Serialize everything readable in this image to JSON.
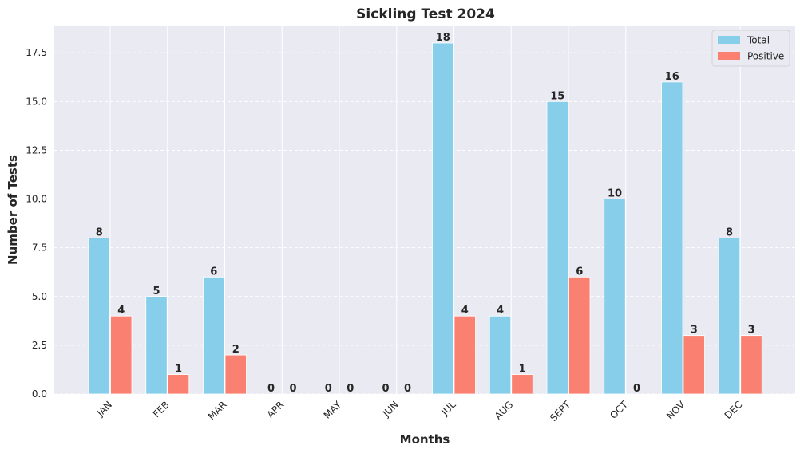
{
  "chart_data": {
    "type": "bar",
    "title": "Sickling Test 2024",
    "xlabel": "Months",
    "ylabel": "Number of Tests",
    "categories": [
      "JAN",
      "FEB",
      "MAR",
      "APR",
      "MAY",
      "JUN",
      "JUL",
      "AUG",
      "SEPT",
      "OCT",
      "NOV",
      "DEC"
    ],
    "series": [
      {
        "name": "Total",
        "values": [
          8,
          5,
          6,
          0,
          0,
          0,
          18,
          4,
          15,
          10,
          16,
          8
        ],
        "color": "#87ceeb"
      },
      {
        "name": "Positive",
        "values": [
          4,
          1,
          2,
          0,
          0,
          0,
          4,
          1,
          6,
          0,
          3,
          3
        ],
        "color": "#fa8072"
      }
    ],
    "ylim": [
      0,
      18.9
    ],
    "yticks": [
      0.0,
      2.5,
      5.0,
      7.5,
      10.0,
      12.5,
      15.0,
      17.5
    ],
    "ytick_labels": [
      "0.0",
      "2.5",
      "5.0",
      "7.5",
      "10.0",
      "12.5",
      "15.0",
      "17.5"
    ],
    "grid": true,
    "legend_position": "top-right",
    "data_labels": true,
    "plot_background": "#eaeaf2"
  }
}
